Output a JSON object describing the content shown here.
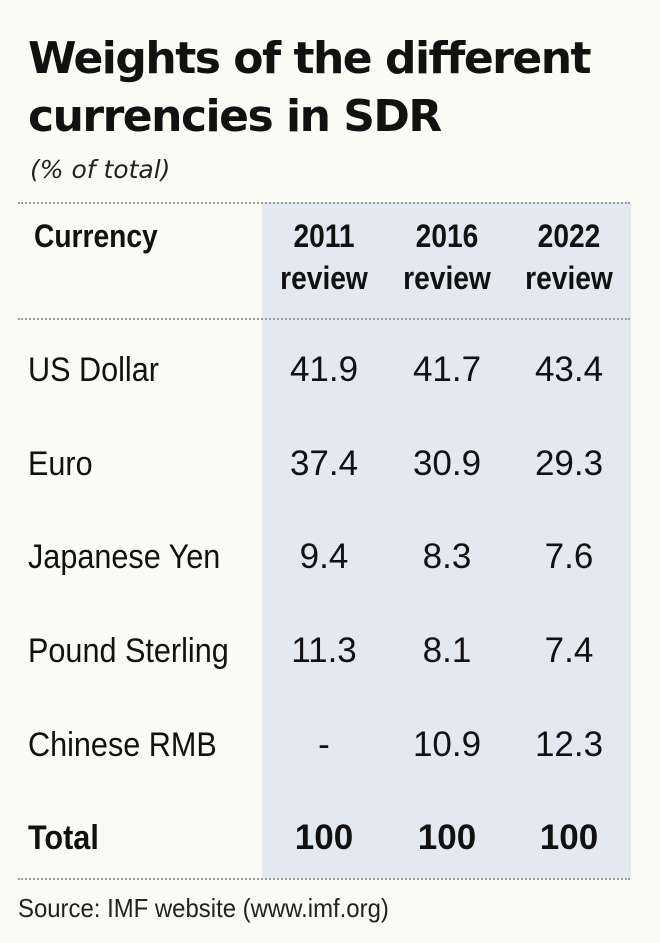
{
  "title_line1": "Weights of the different",
  "title_line2": "currencies in SDR",
  "subtitle": "(% of total)",
  "source": "Source: IMF website (www.imf.org)",
  "chart_data": {
    "type": "table",
    "title": "Weights of the different currencies in SDR",
    "subtitle": "(% of total)",
    "columns": [
      "Currency",
      "2011 review",
      "2016 review",
      "2022 review"
    ],
    "column_header_lines": [
      [
        "Currency"
      ],
      [
        "2011",
        "review"
      ],
      [
        "2016",
        "review"
      ],
      [
        "2022",
        "review"
      ]
    ],
    "rows": [
      [
        "US Dollar",
        "41.9",
        "41.7",
        "43.4"
      ],
      [
        "Euro",
        "37.4",
        "30.9",
        "29.3"
      ],
      [
        "Japanese Yen",
        "9.4",
        "8.3",
        "7.6"
      ],
      [
        "Pound Sterling",
        "11.3",
        "8.1",
        "7.4"
      ],
      [
        "Chinese RMB",
        "-",
        "10.9",
        "12.3"
      ]
    ],
    "total_row": [
      "Total",
      "100",
      "100",
      "100"
    ],
    "highlight_color": "#e4e8ef"
  }
}
